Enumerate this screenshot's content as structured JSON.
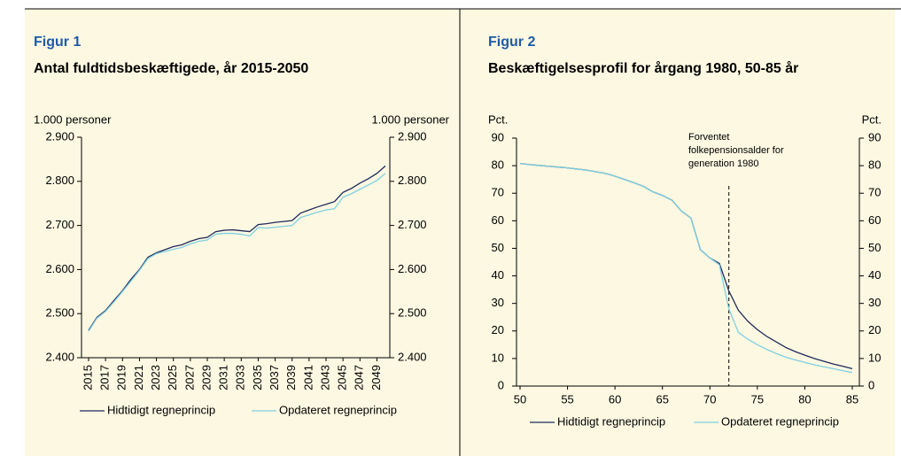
{
  "chart_data": [
    {
      "type": "line",
      "title": "Figur 1",
      "subtitle": "Antal fuldtidsbeskæftigede, år 2015-2050",
      "y_label_left": "1.000 personer",
      "y_label_right": "1.000 personer",
      "x": [
        2015,
        2016,
        2017,
        2018,
        2019,
        2020,
        2021,
        2022,
        2023,
        2024,
        2025,
        2026,
        2027,
        2028,
        2029,
        2030,
        2031,
        2032,
        2033,
        2034,
        2035,
        2036,
        2037,
        2038,
        2039,
        2040,
        2041,
        2042,
        2043,
        2044,
        2045,
        2046,
        2047,
        2048,
        2049,
        2050
      ],
      "xlim": [
        2015,
        2050
      ],
      "xticks": [
        2015,
        2017,
        2019,
        2021,
        2023,
        2025,
        2027,
        2029,
        2031,
        2033,
        2035,
        2037,
        2039,
        2041,
        2043,
        2045,
        2047,
        2049
      ],
      "ylim": [
        2400,
        2900
      ],
      "yticks": [
        {
          "value": 2400,
          "label": "2.400"
        },
        {
          "value": 2500,
          "label": "2.500"
        },
        {
          "value": 2600,
          "label": "2.600"
        },
        {
          "value": 2700,
          "label": "2.700"
        },
        {
          "value": 2800,
          "label": "2.800"
        },
        {
          "value": 2900,
          "label": "2.900"
        }
      ],
      "y2lim": [
        2400,
        2900
      ],
      "y2ticks": [
        {
          "value": 2400,
          "label": "2.400"
        },
        {
          "value": 2500,
          "label": "2.500"
        },
        {
          "value": 2600,
          "label": "2.600"
        },
        {
          "value": 2700,
          "label": "2.700"
        },
        {
          "value": 2800,
          "label": "2.800"
        },
        {
          "value": 2900,
          "label": "2.900"
        }
      ],
      "series": [
        {
          "name": "Hidtidigt regneprincip",
          "color": "#1f2a5c",
          "values": [
            2462,
            2492,
            2507,
            2530,
            2552,
            2578,
            2600,
            2628,
            2638,
            2645,
            2652,
            2656,
            2664,
            2670,
            2673,
            2686,
            2689,
            2690,
            2688,
            2686,
            2702,
            2704,
            2707,
            2709,
            2711,
            2728,
            2735,
            2742,
            2748,
            2754,
            2775,
            2784,
            2796,
            2806,
            2818,
            2835
          ]
        },
        {
          "name": "Opdateret regneprincip",
          "color": "#7fd0e2",
          "values": [
            2460,
            2490,
            2505,
            2527,
            2550,
            2574,
            2598,
            2625,
            2636,
            2641,
            2646,
            2650,
            2658,
            2664,
            2667,
            2680,
            2682,
            2682,
            2680,
            2676,
            2695,
            2694,
            2696,
            2698,
            2700,
            2718,
            2724,
            2730,
            2735,
            2738,
            2764,
            2772,
            2782,
            2792,
            2802,
            2818
          ]
        }
      ]
    },
    {
      "type": "line",
      "title": "Figur 2",
      "subtitle": "Beskæftigelsesprofil for årgang 1980, 50-85 år",
      "y_label_left": "Pct.",
      "y_label_right": "Pct.",
      "x": [
        50,
        51,
        52,
        53,
        54,
        55,
        56,
        57,
        58,
        59,
        60,
        61,
        62,
        63,
        64,
        65,
        66,
        67,
        68,
        69,
        70,
        71,
        72,
        73,
        74,
        75,
        76,
        77,
        78,
        79,
        80,
        81,
        82,
        83,
        84,
        85
      ],
      "xlim": [
        50,
        85
      ],
      "xticks": [
        50,
        55,
        60,
        65,
        70,
        75,
        80,
        85
      ],
      "ylim": [
        0,
        90
      ],
      "yticks": [
        0,
        10,
        20,
        30,
        40,
        50,
        60,
        70,
        80,
        90
      ],
      "y2lim": [
        0,
        90
      ],
      "y2ticks": [
        0,
        10,
        20,
        30,
        40,
        50,
        60,
        70,
        80,
        90
      ],
      "annotation": {
        "text": [
          "Forventet",
          "folkepensionsalder for",
          "generation 1980"
        ],
        "x": 72
      },
      "series": [
        {
          "name": "Hidtidigt regneprincip",
          "color": "#1f2a5c",
          "values": [
            80.8,
            80.4,
            80.1,
            79.8,
            79.5,
            79.2,
            78.8,
            78.4,
            77.8,
            77.2,
            76.2,
            75.0,
            73.8,
            72.5,
            70.5,
            69.2,
            67.5,
            63.5,
            61.0,
            49.5,
            46.5,
            44.5,
            34.5,
            27.5,
            23.5,
            20.5,
            18.0,
            16.0,
            14.0,
            12.5,
            11.2,
            10.0,
            9.0,
            8.0,
            7.2,
            6.3
          ]
        },
        {
          "name": "Opdateret regneprincip",
          "color": "#7fd0e2",
          "values": [
            80.8,
            80.4,
            80.1,
            79.8,
            79.5,
            79.2,
            78.8,
            78.4,
            77.8,
            77.2,
            76.2,
            75.0,
            73.8,
            72.5,
            70.5,
            69.2,
            67.5,
            63.5,
            61.0,
            49.5,
            46.5,
            44.0,
            28.0,
            19.5,
            17.0,
            15.0,
            13.3,
            11.8,
            10.5,
            9.5,
            8.6,
            7.7,
            7.0,
            6.3,
            5.6,
            4.9
          ]
        }
      ]
    }
  ]
}
